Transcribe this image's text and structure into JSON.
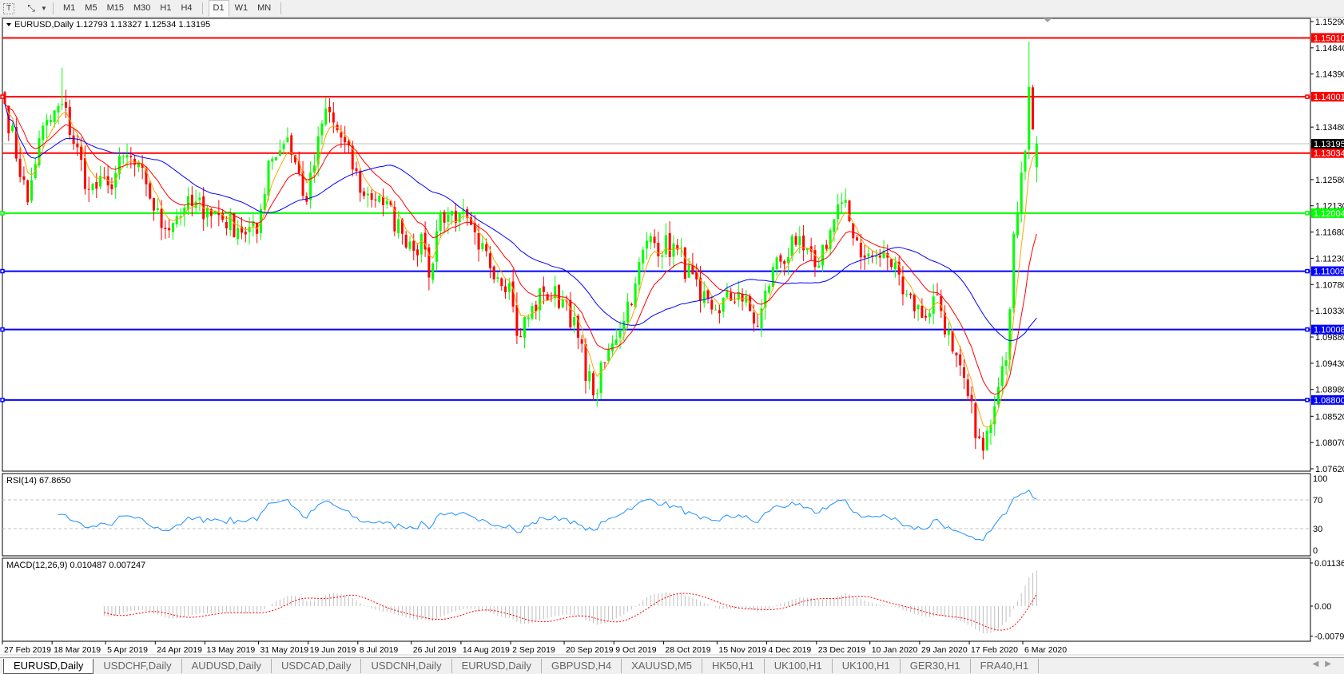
{
  "toolbar": {
    "icons": [
      "text-tool-icon",
      "cursor-arrows-icon",
      "dropdown-arrow-icon"
    ],
    "timeframes": [
      "M1",
      "M5",
      "M15",
      "M30",
      "H1",
      "H4",
      "D1",
      "W1",
      "MN"
    ],
    "active_timeframe": "D1"
  },
  "legend": {
    "symbol": "EURUSD,Daily",
    "ohlc": "1.12793 1.13327 1.12534 1.13195"
  },
  "price_axis": {
    "ticks": [
      "1.15290",
      "1.14840",
      "1.14390",
      "1.13480",
      "1.12580",
      "1.12130",
      "1.11680",
      "1.11230",
      "1.10780",
      "1.10330",
      "1.09880",
      "1.09430",
      "1.08980",
      "1.08520",
      "1.08070",
      "1.07620"
    ]
  },
  "levels": [
    {
      "price": "1.15010",
      "color": "#ff0000",
      "handle": false
    },
    {
      "price": "1.14001",
      "color": "#ff0000",
      "handle": true
    },
    {
      "price": "1.13034",
      "color": "#ff0000",
      "handle": false
    },
    {
      "price": "1.12004",
      "color": "#00ff00",
      "handle": true
    },
    {
      "price": "1.11009",
      "color": "#0000ff",
      "handle": true
    },
    {
      "price": "1.10008",
      "color": "#0000ff",
      "handle": true
    },
    {
      "price": "1.08800",
      "color": "#0000ff",
      "handle": true
    }
  ],
  "current_price": {
    "price": "1.13195",
    "color": "#000000"
  },
  "rsi": {
    "label": "RSI(14) 67.8650",
    "ticks": [
      "100",
      "70",
      "30",
      "0"
    ],
    "color": "#1e90ff"
  },
  "macd": {
    "label": "MACD(12,26,9) 0.010487 0.007247",
    "ticks": [
      "0.011362",
      "0.00",
      "-0.0079"
    ],
    "hist_color": "#c0c0c0",
    "signal_color": "#ff0000"
  },
  "date_labels": [
    "27 Feb 2019",
    "18 Mar 2019",
    "5 Apr 2019",
    "24 Apr 2019",
    "13 May 2019",
    "31 May 2019",
    "19 Jun 2019",
    "8 Jul 2019",
    "26 Jul 2019",
    "14 Aug 2019",
    "2 Sep 2019",
    "20 Sep 2019",
    "9 Oct 2019",
    "28 Oct 2019",
    "15 Nov 2019",
    "4 Dec 2019",
    "23 Dec 2019",
    "10 Jan 2020",
    "29 Jan 2020",
    "17 Feb 2020",
    "6 Mar 2020"
  ],
  "tabs": [
    "EURUSD,Daily",
    "USDCHF,Daily",
    "AUDUSD,Daily",
    "USDCAD,Daily",
    "USDCNH,Daily",
    "EURUSD,Daily",
    "GBPUSD,H4",
    "XAUUSD,M5",
    "HK50,H1",
    "UK100,H1",
    "UK100,H1",
    "GER30,H1",
    "FRA40,H1"
  ],
  "active_tab": 0,
  "chart_data": {
    "type": "candlestick",
    "symbol": "EURUSD",
    "timeframe": "Daily",
    "ylim": [
      1.0762,
      1.1529
    ],
    "bull_color": "#00ff00",
    "bear_color": "#ff0000",
    "moving_average_colors": [
      "#ffa500",
      "#ff0000",
      "#0000ff"
    ],
    "last_bar": {
      "open": 1.12793,
      "high": 1.13327,
      "low": 1.12534,
      "close": 1.13195
    },
    "approx_closes": [
      [
        "2019-02-27",
        1.1388
      ],
      [
        "2019-03-07",
        1.1219
      ],
      [
        "2019-03-12",
        1.1329
      ],
      [
        "2019-03-20",
        1.1388
      ],
      [
        "2019-03-29",
        1.1241
      ],
      [
        "2019-04-05",
        1.1248
      ],
      [
        "2019-04-12",
        1.13
      ],
      [
        "2019-04-19",
        1.125
      ],
      [
        "2019-04-25",
        1.1175
      ],
      [
        "2019-05-03",
        1.121
      ],
      [
        "2019-05-13",
        1.121
      ],
      [
        "2019-05-23",
        1.1175
      ],
      [
        "2019-05-30",
        1.1165
      ],
      [
        "2019-06-04",
        1.129
      ],
      [
        "2019-06-11",
        1.133
      ],
      [
        "2019-06-18",
        1.122
      ],
      [
        "2019-06-25",
        1.138
      ],
      [
        "2019-07-01",
        1.133
      ],
      [
        "2019-07-09",
        1.123
      ],
      [
        "2019-07-15",
        1.123
      ],
      [
        "2019-07-23",
        1.1165
      ],
      [
        "2019-07-31",
        1.1138
      ],
      [
        "2019-08-01",
        1.109
      ],
      [
        "2019-08-06",
        1.12
      ],
      [
        "2019-08-13",
        1.12
      ],
      [
        "2019-08-20",
        1.1138
      ],
      [
        "2019-08-30",
        1.108
      ],
      [
        "2019-09-03",
        1.099
      ],
      [
        "2019-09-12",
        1.1065
      ],
      [
        "2019-09-20",
        1.105
      ],
      [
        "2019-10-01",
        1.0888
      ],
      [
        "2019-10-08",
        1.0977
      ],
      [
        "2019-10-16",
        1.108
      ],
      [
        "2019-10-21",
        1.1153
      ],
      [
        "2019-10-31",
        1.1138
      ],
      [
        "2019-11-08",
        1.105
      ],
      [
        "2019-11-14",
        1.1035
      ],
      [
        "2019-11-22",
        1.1065
      ],
      [
        "2019-11-29",
        1.1006
      ],
      [
        "2019-12-05",
        1.1108
      ],
      [
        "2019-12-13",
        1.1146
      ],
      [
        "2019-12-20",
        1.1108
      ],
      [
        "2019-12-31",
        1.1219
      ],
      [
        "2020-01-08",
        1.1124
      ],
      [
        "2020-01-16",
        1.1124
      ],
      [
        "2020-01-21",
        1.1095
      ],
      [
        "2020-01-29",
        1.1021
      ],
      [
        "2020-02-04",
        1.106
      ],
      [
        "2020-02-10",
        1.0963
      ],
      [
        "2020-02-19",
        1.0815
      ],
      [
        "2020-02-20",
        1.0793
      ],
      [
        "2020-02-24",
        1.0837
      ],
      [
        "2020-02-28",
        1.0948
      ],
      [
        "2020-03-03",
        1.1165
      ],
      [
        "2020-03-05",
        1.127
      ],
      [
        "2020-03-06",
        1.1307
      ],
      [
        "2020-03-09",
        1.1417
      ],
      [
        "2020-03-10",
        1.1344
      ],
      [
        "2020-03-11",
        1.13195
      ]
    ],
    "extremes": [
      [
        "2019-03-20",
        "high",
        1.145
      ],
      [
        "2020-03-09",
        "high",
        1.1495
      ],
      [
        "2020-02-20",
        "low",
        1.0778
      ],
      [
        "2019-10-01",
        "low",
        1.0879
      ]
    ]
  }
}
